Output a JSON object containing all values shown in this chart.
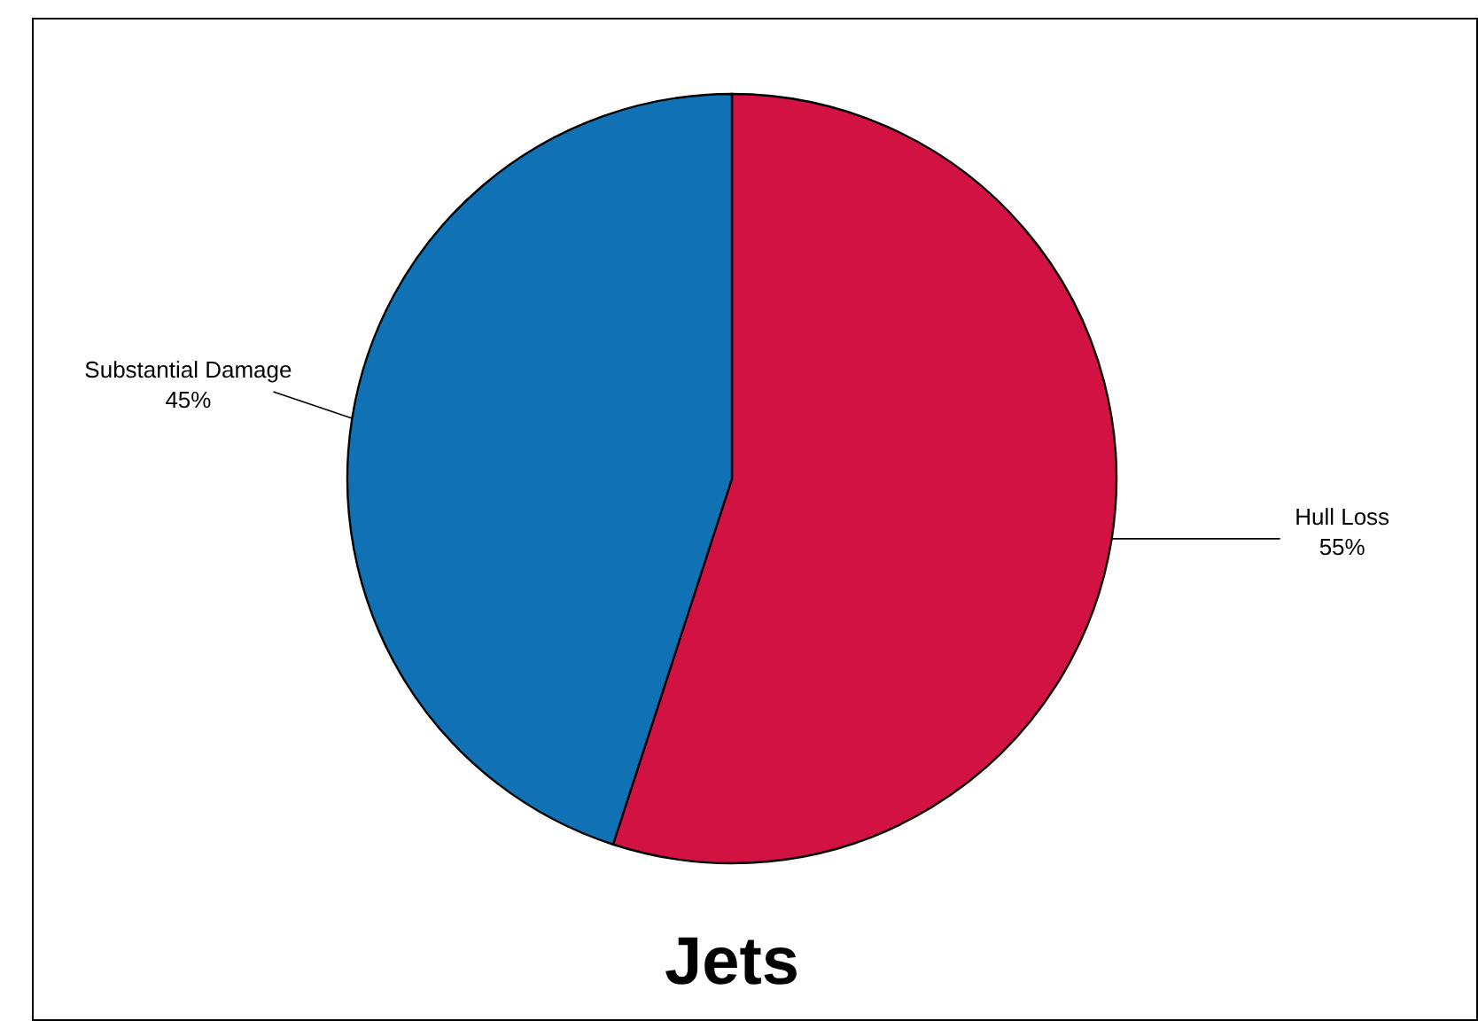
{
  "chart_data": {
    "type": "pie",
    "title": "Jets",
    "categories": [
      "Hull Loss",
      "Substantial Damage"
    ],
    "values": [
      55,
      45
    ],
    "colors": [
      "#d21243",
      "#1072b4"
    ],
    "value_labels": [
      "55%",
      "45%"
    ],
    "legend": false
  }
}
